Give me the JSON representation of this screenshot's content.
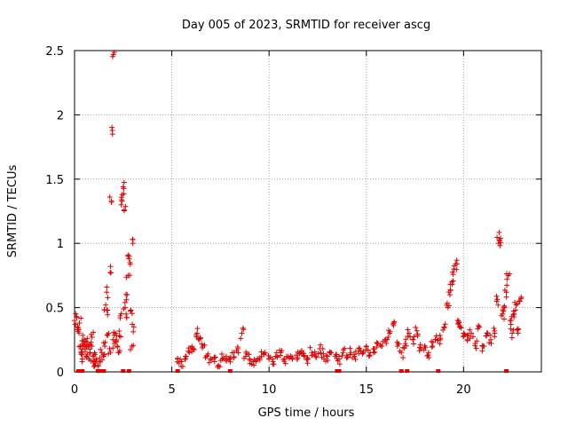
{
  "chart_data": {
    "type": "scatter",
    "title": "Day 005 of 2023, SRMTID for receiver ascg",
    "xlabel": "GPS time / hours",
    "ylabel": "SRMTID / TECUs",
    "xlim": [
      0,
      24
    ],
    "ylim": [
      0,
      2.5
    ],
    "xticks": [
      0,
      5,
      10,
      15,
      20
    ],
    "yticks": [
      0,
      0.5,
      1,
      1.5,
      2,
      2.5
    ],
    "xtick_labels": [
      "0",
      "5",
      "10",
      "15",
      "20"
    ],
    "ytick_labels": [
      "0",
      "0.5",
      "1",
      "1.5",
      "2",
      "2.5"
    ],
    "grid": true,
    "marker": "+",
    "color": "#dd0000",
    "series": [
      {
        "name": "SRMTID",
        "points": [
          [
            0.0,
            0.4
          ],
          [
            0.05,
            0.37
          ],
          [
            0.1,
            0.43
          ],
          [
            0.15,
            0.35
          ],
          [
            0.2,
            0.33
          ],
          [
            0.25,
            0.38
          ],
          [
            0.3,
            0.2
          ],
          [
            0.35,
            0.15
          ],
          [
            0.4,
            0.1
          ],
          [
            0.45,
            0.22
          ],
          [
            0.5,
            0.25
          ],
          [
            0.55,
            0.18
          ],
          [
            0.6,
            0.12
          ],
          [
            0.65,
            0.26
          ],
          [
            0.7,
            0.2
          ],
          [
            0.75,
            0.1
          ],
          [
            0.8,
            0.15
          ],
          [
            0.85,
            0.23
          ],
          [
            0.9,
            0.27
          ],
          [
            0.95,
            0.12
          ],
          [
            1.0,
            0.08
          ],
          [
            1.05,
            0.05
          ],
          [
            1.1,
            0.1
          ],
          [
            1.2,
            0.05
          ],
          [
            1.3,
            0.08
          ],
          [
            1.4,
            0.15
          ],
          [
            1.5,
            0.12
          ],
          [
            1.55,
            0.2
          ],
          [
            1.6,
            0.52
          ],
          [
            1.65,
            0.62
          ],
          [
            1.7,
            0.48
          ],
          [
            1.75,
            0.3
          ],
          [
            1.8,
            0.18
          ],
          [
            1.85,
            0.82
          ],
          [
            1.9,
            1.33
          ],
          [
            1.95,
            1.85
          ],
          [
            2.0,
            2.47
          ],
          [
            2.05,
            0.22
          ],
          [
            2.1,
            0.3
          ],
          [
            2.15,
            0.25
          ],
          [
            2.2,
            0.2
          ],
          [
            2.25,
            0.15
          ],
          [
            2.3,
            0.28
          ],
          [
            2.35,
            0.42
          ],
          [
            2.4,
            1.3
          ],
          [
            2.45,
            1.38
          ],
          [
            2.5,
            1.44
          ],
          [
            2.55,
            1.26
          ],
          [
            2.6,
            0.5
          ],
          [
            2.65,
            0.45
          ],
          [
            2.7,
            0.6
          ],
          [
            2.75,
            0.75
          ],
          [
            2.8,
            0.88
          ],
          [
            2.85,
            0.85
          ],
          [
            2.9,
            0.48
          ],
          [
            2.95,
            0.2
          ],
          [
            3.0,
            1.03
          ],
          [
            3.05,
            0.35
          ],
          [
            5.3,
            0.1
          ],
          [
            5.5,
            0.08
          ],
          [
            5.7,
            0.12
          ],
          [
            5.9,
            0.15
          ],
          [
            6.1,
            0.18
          ],
          [
            6.3,
            0.3
          ],
          [
            6.4,
            0.25
          ],
          [
            6.6,
            0.2
          ],
          [
            6.8,
            0.12
          ],
          [
            7.0,
            0.1
          ],
          [
            7.2,
            0.08
          ],
          [
            7.4,
            0.05
          ],
          [
            7.6,
            0.1
          ],
          [
            7.8,
            0.12
          ],
          [
            8.0,
            0.1
          ],
          [
            8.2,
            0.15
          ],
          [
            8.4,
            0.18
          ],
          [
            8.6,
            0.3
          ],
          [
            8.8,
            0.12
          ],
          [
            9.0,
            0.1
          ],
          [
            9.2,
            0.08
          ],
          [
            9.4,
            0.1
          ],
          [
            9.6,
            0.12
          ],
          [
            9.8,
            0.15
          ],
          [
            10.0,
            0.1
          ],
          [
            10.2,
            0.08
          ],
          [
            10.4,
            0.12
          ],
          [
            10.6,
            0.15
          ],
          [
            10.8,
            0.1
          ],
          [
            11.0,
            0.12
          ],
          [
            11.2,
            0.1
          ],
          [
            11.4,
            0.13
          ],
          [
            11.6,
            0.15
          ],
          [
            11.8,
            0.12
          ],
          [
            12.0,
            0.1
          ],
          [
            12.2,
            0.15
          ],
          [
            12.4,
            0.12
          ],
          [
            12.6,
            0.18
          ],
          [
            12.8,
            0.14
          ],
          [
            13.0,
            0.12
          ],
          [
            13.2,
            0.15
          ],
          [
            13.4,
            0.12
          ],
          [
            13.6,
            0.1
          ],
          [
            13.8,
            0.15
          ],
          [
            14.0,
            0.13
          ],
          [
            14.2,
            0.15
          ],
          [
            14.4,
            0.12
          ],
          [
            14.6,
            0.16
          ],
          [
            14.8,
            0.14
          ],
          [
            15.0,
            0.2
          ],
          [
            15.2,
            0.15
          ],
          [
            15.4,
            0.18
          ],
          [
            15.6,
            0.22
          ],
          [
            15.8,
            0.2
          ],
          [
            16.0,
            0.25
          ],
          [
            16.2,
            0.3
          ],
          [
            16.4,
            0.36
          ],
          [
            16.6,
            0.2
          ],
          [
            16.8,
            0.15
          ],
          [
            17.0,
            0.22
          ],
          [
            17.2,
            0.3
          ],
          [
            17.4,
            0.25
          ],
          [
            17.6,
            0.32
          ],
          [
            17.8,
            0.18
          ],
          [
            18.0,
            0.2
          ],
          [
            18.2,
            0.15
          ],
          [
            18.4,
            0.2
          ],
          [
            18.6,
            0.28
          ],
          [
            18.8,
            0.25
          ],
          [
            19.0,
            0.35
          ],
          [
            19.2,
            0.5
          ],
          [
            19.3,
            0.6
          ],
          [
            19.4,
            0.7
          ],
          [
            19.5,
            0.8
          ],
          [
            19.6,
            0.84
          ],
          [
            19.7,
            0.4
          ],
          [
            19.8,
            0.35
          ],
          [
            20.0,
            0.3
          ],
          [
            20.2,
            0.25
          ],
          [
            20.4,
            0.3
          ],
          [
            20.6,
            0.22
          ],
          [
            20.8,
            0.35
          ],
          [
            21.0,
            0.2
          ],
          [
            21.2,
            0.3
          ],
          [
            21.4,
            0.25
          ],
          [
            21.6,
            0.3
          ],
          [
            21.7,
            0.55
          ],
          [
            21.8,
            1.0
          ],
          [
            21.9,
            1.04
          ],
          [
            22.0,
            0.45
          ],
          [
            22.1,
            0.5
          ],
          [
            22.2,
            0.62
          ],
          [
            22.3,
            0.75
          ],
          [
            22.4,
            0.4
          ],
          [
            22.5,
            0.3
          ],
          [
            22.6,
            0.45
          ],
          [
            22.7,
            0.52
          ],
          [
            22.8,
            0.3
          ],
          [
            22.9,
            0.55
          ]
        ],
        "zero_points": [
          0.2,
          0.4,
          1.2,
          1.35,
          1.5,
          2.5,
          2.8,
          5.3,
          8.0,
          13.5,
          13.6,
          16.8,
          17.1,
          18.7,
          22.2
        ]
      }
    ]
  }
}
